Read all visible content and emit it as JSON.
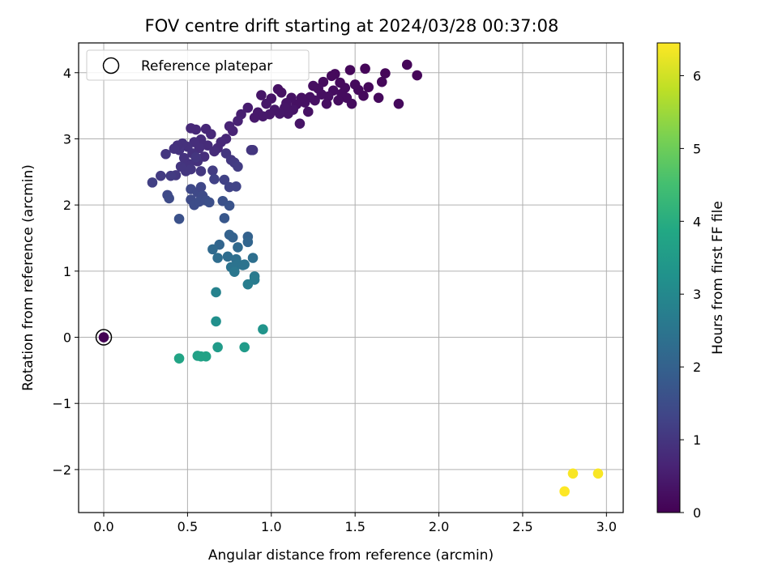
{
  "chart_data": {
    "type": "scatter",
    "title": "FOV centre drift starting at 2024/03/28 00:37:08",
    "xlabel": "Angular distance from reference (arcmin)",
    "ylabel": "Rotation from reference (arcmin)",
    "colorbar_label": "Hours from first FF file",
    "xlim": [
      -0.15,
      3.1
    ],
    "ylim": [
      -2.65,
      4.45
    ],
    "clim": [
      0,
      6.45
    ],
    "x_ticks": [
      0.0,
      0.5,
      1.0,
      1.5,
      2.0,
      2.5,
      3.0
    ],
    "x_tick_labels": [
      "0.0",
      "0.5",
      "1.0",
      "1.5",
      "2.0",
      "2.5",
      "3.0"
    ],
    "y_ticks": [
      -2,
      -1,
      0,
      1,
      2,
      3,
      4
    ],
    "y_tick_labels": [
      "−2",
      "−1",
      "0",
      "1",
      "2",
      "3",
      "4"
    ],
    "c_ticks": [
      0,
      1,
      2,
      3,
      4,
      5,
      6
    ],
    "c_tick_labels": [
      "0",
      "1",
      "2",
      "3",
      "4",
      "5",
      "6"
    ],
    "grid": true,
    "colormap": "viridis",
    "legend": {
      "location": "upper-left",
      "label": "Reference platepar"
    },
    "reference_point": {
      "x": 0.0,
      "y": 0.0
    },
    "points": [
      {
        "x": 0.0,
        "y": 0.0,
        "c": 0.0
      },
      {
        "x": 1.81,
        "y": 4.12,
        "c": 0.1
      },
      {
        "x": 1.87,
        "y": 3.96,
        "c": 0.1
      },
      {
        "x": 1.76,
        "y": 3.53,
        "c": 0.15
      },
      {
        "x": 1.68,
        "y": 3.99,
        "c": 0.1
      },
      {
        "x": 1.66,
        "y": 3.86,
        "c": 0.12
      },
      {
        "x": 1.64,
        "y": 3.62,
        "c": 0.15
      },
      {
        "x": 1.58,
        "y": 3.78,
        "c": 0.12
      },
      {
        "x": 1.56,
        "y": 4.06,
        "c": 0.1
      },
      {
        "x": 1.55,
        "y": 3.65,
        "c": 0.15
      },
      {
        "x": 1.52,
        "y": 3.74,
        "c": 0.15
      },
      {
        "x": 1.5,
        "y": 3.82,
        "c": 0.15
      },
      {
        "x": 1.48,
        "y": 3.53,
        "c": 0.2
      },
      {
        "x": 1.47,
        "y": 4.04,
        "c": 0.12
      },
      {
        "x": 1.45,
        "y": 3.62,
        "c": 0.2
      },
      {
        "x": 1.44,
        "y": 3.77,
        "c": 0.2
      },
      {
        "x": 1.42,
        "y": 3.68,
        "c": 0.2
      },
      {
        "x": 1.41,
        "y": 3.85,
        "c": 0.18
      },
      {
        "x": 1.4,
        "y": 3.58,
        "c": 0.2
      },
      {
        "x": 1.38,
        "y": 3.98,
        "c": 0.15
      },
      {
        "x": 1.37,
        "y": 3.73,
        "c": 0.22
      },
      {
        "x": 1.36,
        "y": 3.95,
        "c": 0.15
      },
      {
        "x": 1.34,
        "y": 3.64,
        "c": 0.25
      },
      {
        "x": 1.33,
        "y": 3.53,
        "c": 0.25
      },
      {
        "x": 1.31,
        "y": 3.86,
        "c": 0.2
      },
      {
        "x": 1.3,
        "y": 3.67,
        "c": 0.25
      },
      {
        "x": 1.28,
        "y": 3.76,
        "c": 0.25
      },
      {
        "x": 1.26,
        "y": 3.58,
        "c": 0.28
      },
      {
        "x": 1.25,
        "y": 3.8,
        "c": 0.25
      },
      {
        "x": 1.23,
        "y": 3.63,
        "c": 0.3
      },
      {
        "x": 1.22,
        "y": 3.41,
        "c": 0.3
      },
      {
        "x": 1.2,
        "y": 3.55,
        "c": 0.3
      },
      {
        "x": 1.18,
        "y": 3.62,
        "c": 0.3
      },
      {
        "x": 1.17,
        "y": 3.23,
        "c": 0.35
      },
      {
        "x": 1.15,
        "y": 3.52,
        "c": 0.3
      },
      {
        "x": 1.13,
        "y": 3.44,
        "c": 0.35
      },
      {
        "x": 1.12,
        "y": 3.62,
        "c": 0.32
      },
      {
        "x": 1.1,
        "y": 3.38,
        "c": 0.38
      },
      {
        "x": 1.09,
        "y": 3.54,
        "c": 0.35
      },
      {
        "x": 1.08,
        "y": 3.47,
        "c": 0.38
      },
      {
        "x": 1.06,
        "y": 3.7,
        "c": 0.32
      },
      {
        "x": 1.05,
        "y": 3.38,
        "c": 0.4
      },
      {
        "x": 1.04,
        "y": 3.75,
        "c": 0.3
      },
      {
        "x": 1.02,
        "y": 3.44,
        "c": 0.4
      },
      {
        "x": 1.0,
        "y": 3.61,
        "c": 0.35
      },
      {
        "x": 0.99,
        "y": 3.37,
        "c": 0.42
      },
      {
        "x": 0.97,
        "y": 3.53,
        "c": 0.4
      },
      {
        "x": 0.95,
        "y": 3.34,
        "c": 0.45
      },
      {
        "x": 0.94,
        "y": 3.66,
        "c": 0.38
      },
      {
        "x": 0.92,
        "y": 3.4,
        "c": 0.45
      },
      {
        "x": 0.9,
        "y": 3.32,
        "c": 0.45
      },
      {
        "x": 0.86,
        "y": 3.47,
        "c": 0.5
      },
      {
        "x": 0.82,
        "y": 3.37,
        "c": 0.55
      },
      {
        "x": 0.8,
        "y": 3.27,
        "c": 0.6
      },
      {
        "x": 0.77,
        "y": 3.12,
        "c": 0.65
      },
      {
        "x": 0.75,
        "y": 3.19,
        "c": 0.65
      },
      {
        "x": 0.73,
        "y": 3.0,
        "c": 0.7
      },
      {
        "x": 0.7,
        "y": 2.95,
        "c": 0.75
      },
      {
        "x": 0.68,
        "y": 2.86,
        "c": 0.75
      },
      {
        "x": 0.66,
        "y": 2.81,
        "c": 0.8
      },
      {
        "x": 0.64,
        "y": 3.07,
        "c": 0.75
      },
      {
        "x": 0.62,
        "y": 2.9,
        "c": 0.8
      },
      {
        "x": 0.61,
        "y": 3.15,
        "c": 0.7
      },
      {
        "x": 0.6,
        "y": 2.73,
        "c": 0.85
      },
      {
        "x": 0.58,
        "y": 2.99,
        "c": 0.8
      },
      {
        "x": 0.57,
        "y": 2.86,
        "c": 0.85
      },
      {
        "x": 0.56,
        "y": 2.66,
        "c": 0.9
      },
      {
        "x": 0.55,
        "y": 3.14,
        "c": 0.75
      },
      {
        "x": 0.54,
        "y": 2.95,
        "c": 0.85
      },
      {
        "x": 0.53,
        "y": 2.78,
        "c": 0.9
      },
      {
        "x": 0.52,
        "y": 3.16,
        "c": 0.75
      },
      {
        "x": 0.51,
        "y": 2.62,
        "c": 0.95
      },
      {
        "x": 0.5,
        "y": 2.88,
        "c": 0.9
      },
      {
        "x": 0.49,
        "y": 2.51,
        "c": 1.0
      },
      {
        "x": 0.48,
        "y": 2.71,
        "c": 0.95
      },
      {
        "x": 0.47,
        "y": 2.93,
        "c": 0.9
      },
      {
        "x": 0.46,
        "y": 2.58,
        "c": 1.0
      },
      {
        "x": 0.45,
        "y": 2.83,
        "c": 0.95
      },
      {
        "x": 0.44,
        "y": 2.9,
        "c": 0.9
      },
      {
        "x": 0.43,
        "y": 2.45,
        "c": 1.05
      },
      {
        "x": 0.42,
        "y": 2.85,
        "c": 0.95
      },
      {
        "x": 0.4,
        "y": 2.44,
        "c": 1.1
      },
      {
        "x": 0.37,
        "y": 2.77,
        "c": 1.0
      },
      {
        "x": 0.34,
        "y": 2.44,
        "c": 1.1
      },
      {
        "x": 0.29,
        "y": 2.34,
        "c": 1.2
      },
      {
        "x": 0.52,
        "y": 2.54,
        "c": 1.0
      },
      {
        "x": 0.55,
        "y": 2.72,
        "c": 1.0
      },
      {
        "x": 0.58,
        "y": 2.51,
        "c": 1.05
      },
      {
        "x": 0.73,
        "y": 2.78,
        "c": 1.0
      },
      {
        "x": 0.76,
        "y": 2.68,
        "c": 1.05
      },
      {
        "x": 0.78,
        "y": 2.64,
        "c": 1.1
      },
      {
        "x": 0.8,
        "y": 2.58,
        "c": 1.15
      },
      {
        "x": 0.88,
        "y": 2.83,
        "c": 1.0
      },
      {
        "x": 0.89,
        "y": 2.83,
        "c": 1.0
      },
      {
        "x": 0.65,
        "y": 2.52,
        "c": 1.15
      },
      {
        "x": 0.66,
        "y": 2.39,
        "c": 1.25
      },
      {
        "x": 0.72,
        "y": 2.38,
        "c": 1.25
      },
      {
        "x": 0.75,
        "y": 2.27,
        "c": 1.3
      },
      {
        "x": 0.79,
        "y": 2.28,
        "c": 1.3
      },
      {
        "x": 0.52,
        "y": 2.24,
        "c": 1.4
      },
      {
        "x": 0.56,
        "y": 2.19,
        "c": 1.4
      },
      {
        "x": 0.58,
        "y": 2.27,
        "c": 1.35
      },
      {
        "x": 0.59,
        "y": 2.14,
        "c": 1.45
      },
      {
        "x": 0.52,
        "y": 2.08,
        "c": 1.45
      },
      {
        "x": 0.54,
        "y": 2.0,
        "c": 1.5
      },
      {
        "x": 0.57,
        "y": 2.05,
        "c": 1.5
      },
      {
        "x": 0.61,
        "y": 2.07,
        "c": 1.5
      },
      {
        "x": 0.63,
        "y": 2.04,
        "c": 1.55
      },
      {
        "x": 0.38,
        "y": 2.15,
        "c": 1.4
      },
      {
        "x": 0.39,
        "y": 2.1,
        "c": 1.45
      },
      {
        "x": 0.45,
        "y": 1.79,
        "c": 1.6
      },
      {
        "x": 0.71,
        "y": 2.06,
        "c": 1.6
      },
      {
        "x": 0.75,
        "y": 1.99,
        "c": 1.65
      },
      {
        "x": 0.72,
        "y": 1.8,
        "c": 1.75
      },
      {
        "x": 0.75,
        "y": 1.55,
        "c": 2.0
      },
      {
        "x": 0.77,
        "y": 1.51,
        "c": 2.0
      },
      {
        "x": 0.86,
        "y": 1.52,
        "c": 2.0
      },
      {
        "x": 0.86,
        "y": 1.44,
        "c": 2.1
      },
      {
        "x": 0.69,
        "y": 1.4,
        "c": 2.1
      },
      {
        "x": 0.8,
        "y": 1.36,
        "c": 2.2
      },
      {
        "x": 0.65,
        "y": 1.33,
        "c": 2.2
      },
      {
        "x": 0.68,
        "y": 1.2,
        "c": 2.3
      },
      {
        "x": 0.74,
        "y": 1.22,
        "c": 2.3
      },
      {
        "x": 0.79,
        "y": 1.18,
        "c": 2.35
      },
      {
        "x": 0.89,
        "y": 1.2,
        "c": 2.35
      },
      {
        "x": 0.76,
        "y": 1.06,
        "c": 2.45
      },
      {
        "x": 0.8,
        "y": 1.1,
        "c": 2.45
      },
      {
        "x": 0.83,
        "y": 1.09,
        "c": 2.45
      },
      {
        "x": 0.84,
        "y": 1.1,
        "c": 2.45
      },
      {
        "x": 0.78,
        "y": 0.99,
        "c": 2.55
      },
      {
        "x": 0.9,
        "y": 0.92,
        "c": 2.6
      },
      {
        "x": 0.9,
        "y": 0.87,
        "c": 2.65
      },
      {
        "x": 0.86,
        "y": 0.8,
        "c": 2.7
      },
      {
        "x": 0.67,
        "y": 0.68,
        "c": 2.85
      },
      {
        "x": 0.67,
        "y": 0.24,
        "c": 3.2
      },
      {
        "x": 0.95,
        "y": 0.12,
        "c": 3.3
      },
      {
        "x": 0.68,
        "y": -0.15,
        "c": 3.5
      },
      {
        "x": 0.84,
        "y": -0.15,
        "c": 3.5
      },
      {
        "x": 0.56,
        "y": -0.28,
        "c": 3.65
      },
      {
        "x": 0.58,
        "y": -0.29,
        "c": 3.7
      },
      {
        "x": 0.61,
        "y": -0.29,
        "c": 3.7
      },
      {
        "x": 0.45,
        "y": -0.32,
        "c": 3.75
      },
      {
        "x": 2.8,
        "y": -2.06,
        "c": 6.4
      },
      {
        "x": 2.95,
        "y": -2.06,
        "c": 6.4
      },
      {
        "x": 2.75,
        "y": -2.33,
        "c": 6.45
      }
    ]
  }
}
